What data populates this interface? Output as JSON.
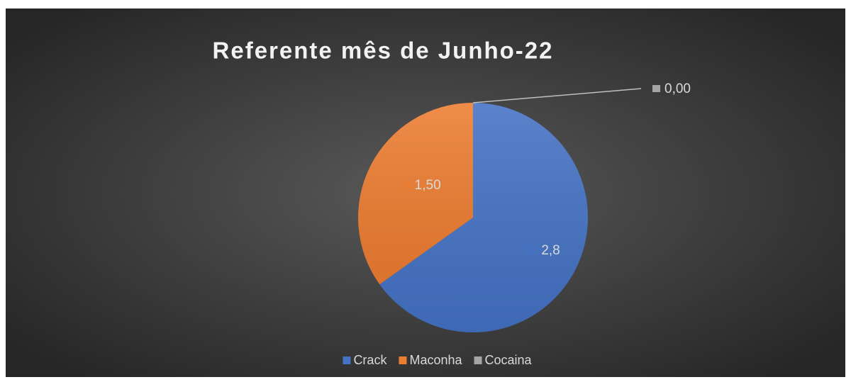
{
  "chart_data": {
    "type": "pie",
    "title": "Referente mês de Junho-22",
    "categories": [
      "Crack",
      "Maconha",
      "Cocaina"
    ],
    "values": [
      2.8,
      1.5,
      0
    ],
    "value_labels": [
      "2,8",
      "1,50",
      "0,00"
    ],
    "colors": [
      "#4472c4",
      "#ed7d31",
      "#a5a5a5"
    ],
    "legend": "bottom"
  }
}
